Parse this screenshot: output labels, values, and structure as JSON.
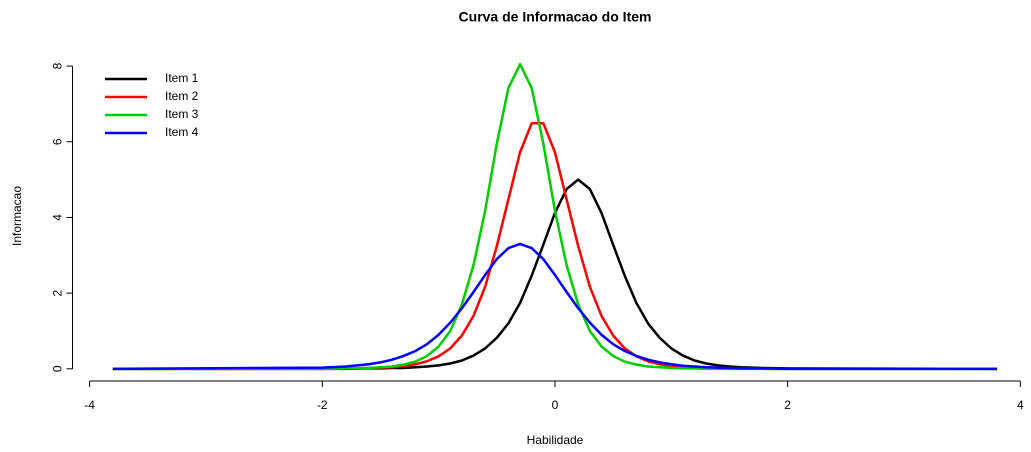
{
  "chart_data": {
    "type": "line",
    "title": "Curva de Informacao do Item",
    "xlabel": "Habilidade",
    "ylabel": "Informacao",
    "x": [
      -3.8,
      -2,
      -1.8,
      -1.6,
      -1.5,
      -1.4,
      -1.3,
      -1.2,
      -1.1,
      -1.0,
      -0.9,
      -0.8,
      -0.7,
      -0.6,
      -0.5,
      -0.4,
      -0.3,
      -0.2,
      -0.1,
      0,
      0.1,
      0.2,
      0.3,
      0.4,
      0.5,
      0.6,
      0.7,
      0.8,
      0.9,
      1.0,
      1.1,
      1.2,
      1.3,
      1.4,
      1.5,
      1.6,
      1.8,
      2,
      3.8
    ],
    "series": [
      {
        "name": "Item 1",
        "color": "#000000",
        "values": [
          0,
          0,
          0,
          0.01,
          0.01,
          0.02,
          0.02,
          0.04,
          0.06,
          0.09,
          0.14,
          0.22,
          0.35,
          0.54,
          0.82,
          1.2,
          1.74,
          2.46,
          3.28,
          4.12,
          4.75,
          5.0,
          4.75,
          4.12,
          3.28,
          2.46,
          1.74,
          1.2,
          0.82,
          0.54,
          0.35,
          0.22,
          0.14,
          0.09,
          0.06,
          0.04,
          0.02,
          0.01,
          0
        ]
      },
      {
        "name": "Item 2",
        "color": "#ff0000",
        "values": [
          0,
          0,
          0.01,
          0.02,
          0.03,
          0.04,
          0.07,
          0.12,
          0.2,
          0.33,
          0.54,
          0.88,
          1.4,
          2.17,
          3.24,
          4.48,
          5.72,
          6.49,
          6.49,
          5.72,
          4.48,
          3.24,
          2.17,
          1.4,
          0.88,
          0.54,
          0.33,
          0.2,
          0.12,
          0.07,
          0.04,
          0.03,
          0.02,
          0.01,
          0.01,
          0.01,
          0,
          0,
          0
        ]
      },
      {
        "name": "Item 3",
        "color": "#00cd00",
        "values": [
          0,
          0,
          0.01,
          0.02,
          0.04,
          0.06,
          0.11,
          0.19,
          0.34,
          0.59,
          1.0,
          1.7,
          2.74,
          4.18,
          5.95,
          7.42,
          8.05,
          7.42,
          5.95,
          4.18,
          2.74,
          1.7,
          1.0,
          0.59,
          0.34,
          0.19,
          0.11,
          0.06,
          0.04,
          0.02,
          0.01,
          0.01,
          0,
          0,
          0,
          0,
          0,
          0,
          0
        ]
      },
      {
        "name": "Item 4",
        "color": "#0000ff",
        "values": [
          0,
          0.03,
          0.06,
          0.12,
          0.17,
          0.24,
          0.34,
          0.47,
          0.65,
          0.9,
          1.22,
          1.6,
          2.03,
          2.48,
          2.9,
          3.19,
          3.3,
          3.19,
          2.9,
          2.48,
          2.03,
          1.6,
          1.22,
          0.9,
          0.65,
          0.47,
          0.34,
          0.24,
          0.17,
          0.12,
          0.08,
          0.06,
          0.04,
          0.03,
          0.02,
          0.01,
          0.01,
          0,
          0
        ]
      }
    ],
    "xlim": [
      -4.104,
      4.104
    ],
    "ylim": [
      -0.322,
      8.372
    ],
    "xticks": [
      -4,
      -2,
      0,
      2,
      4
    ],
    "yticks": [
      0,
      2,
      4,
      6,
      8
    ],
    "legend": "top-left"
  }
}
